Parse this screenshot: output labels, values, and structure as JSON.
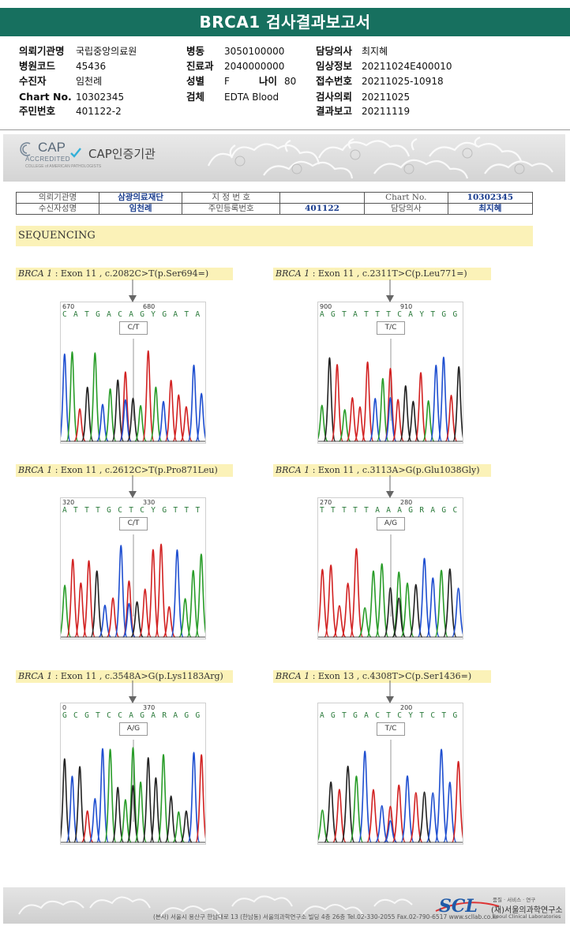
{
  "title": "BRCA1 검사결과보고서",
  "header": {
    "col1": [
      {
        "label": "의뢰기관명",
        "value": "국립중앙의료원"
      },
      {
        "label": "병원코드",
        "value": "45436"
      },
      {
        "label": "수진자",
        "value": "임천례"
      },
      {
        "label": "Chart No.",
        "value": "10302345"
      },
      {
        "label": "주민번호",
        "value": "401122-2"
      }
    ],
    "col2": [
      {
        "label": "병동",
        "value": "3050100000"
      },
      {
        "label": "진료과",
        "value": "2040000000"
      },
      {
        "label": "성별",
        "value": "F"
      },
      {
        "label": "검체",
        "value": "EDTA Blood"
      }
    ],
    "age": {
      "label": "나이",
      "value": "80"
    },
    "col3": [
      {
        "label": "담당의사",
        "value": "최지혜"
      },
      {
        "label": "임상정보",
        "value": "20211024E400010"
      },
      {
        "label": "접수번호",
        "value": "20211025-10918"
      },
      {
        "label": "검사의뢰",
        "value": "20211025"
      },
      {
        "label": "결과보고",
        "value": "20211119"
      }
    ]
  },
  "cap": {
    "logo_text": "CAP",
    "logo_sub": "ACCREDITED",
    "logo_tiny": "COLLEGE of AMERICAN PATHOLOGISTS",
    "label": "CAP인증기관"
  },
  "id_table": {
    "row1": [
      "의뢰기관명",
      "삼광의료재단",
      "지 정 번 호",
      "",
      "Chart No.",
      "10302345"
    ],
    "row2": [
      "수신자성명",
      "임천례",
      "주민등록번호",
      "401122",
      "담당의사",
      "최지혜"
    ]
  },
  "section": "SEQUENCING",
  "variants": [
    {
      "gene": "BRCA 1",
      "desc": " : Exon 11 , c.2082C>T(p.Ser694=)",
      "pos_left": "670",
      "pos_right": "680",
      "sequence": "C A T G A C A G Y G A T A C T T T C C",
      "call": "C/T",
      "colors": [
        "#1f4fd0",
        "#2a9d2a",
        "#d22",
        "#333"
      ]
    },
    {
      "gene": "BRCA 1",
      "desc": " : Exon 11 , c.2311T>C(p.Leu771=)",
      "pos_left": "900",
      "pos_right": "910",
      "sequence": "A G T A T T T C A Y T G G T A C C T G",
      "call": "T/C",
      "colors": []
    },
    {
      "gene": "BRCA 1",
      "desc": " : Exon 11 , c.2612C>T(p.Pro871Leu)",
      "pos_left": "320",
      "pos_right": "330",
      "sequence": "A T T T G C T C Y G T T T T C A A A",
      "call": "C/T",
      "colors": []
    },
    {
      "gene": "BRCA 1",
      "desc": " : Exon 11 , c.3113A>G(p.Glu1038Gly)",
      "pos_left": "270",
      "pos_right": "280",
      "sequence": "T T T T T A A A G R A G C C A G C",
      "call": "A/G",
      "colors": []
    },
    {
      "gene": "BRCA 1",
      "desc": " : Exon 11 , c.3548A>G(p.Lys1183Arg)",
      "pos_left": "0",
      "pos_right": "370",
      "sequence": "G C G T C C A G A R A G G A G A G C T",
      "call": "A/G",
      "colors": []
    },
    {
      "gene": "BRCA 1",
      "desc": " : Exon 13 , c.4308T>C(p.Ser1436=)",
      "pos_left": "",
      "pos_right": "200",
      "sequence": "A G T G A C T C Y T C T G C C C T",
      "call": "T/C",
      "colors": []
    }
  ],
  "footer": {
    "address": "(본사) 서울시 용산구 한남대로 13 (한남동) 서울의과학연구소 빌딩 4층 26층   Tel.02-330-2055   Fax.02-790-6517   www.scllab.co.kr",
    "logo": "SCL",
    "slogan": "품질 · 서비스 · 연구",
    "name": "(재)서울의과학연구소",
    "name_en": "Seoul Clinical Laboratories"
  }
}
